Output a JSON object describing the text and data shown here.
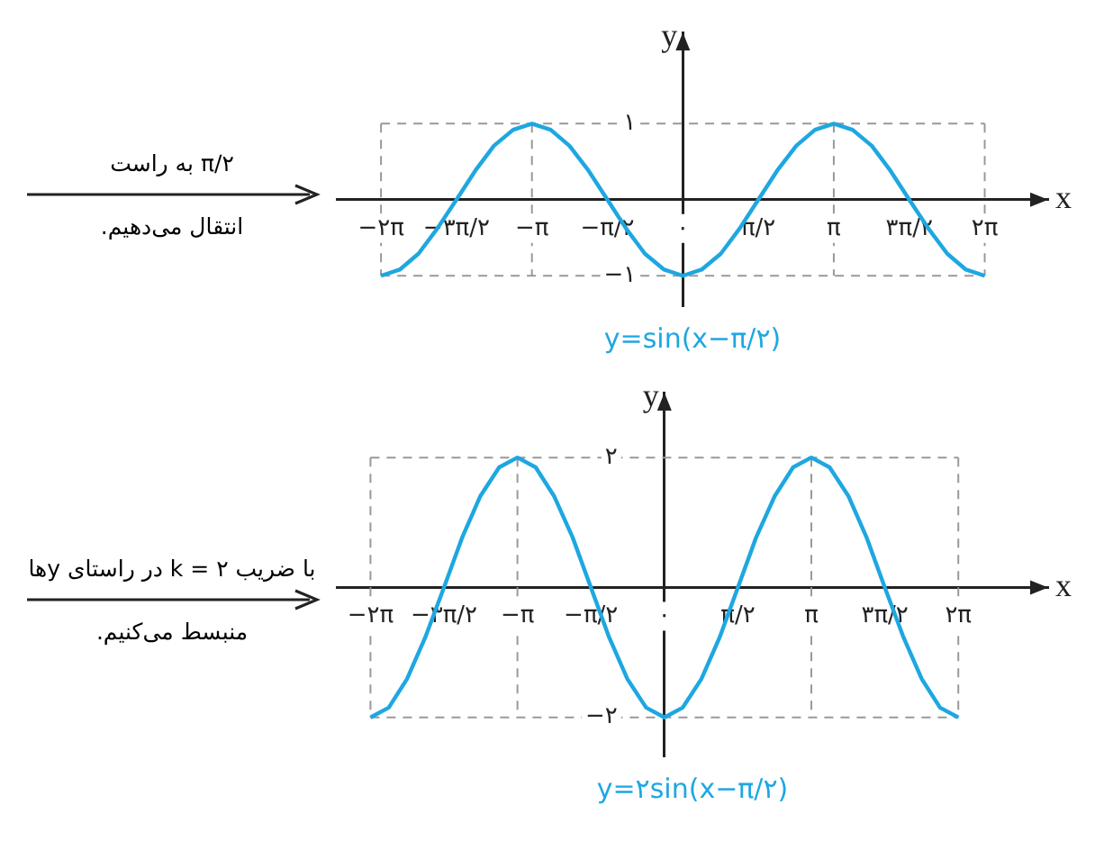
{
  "chart_data": [
    {
      "type": "line",
      "title": "y=sin(x−π/۲)",
      "xlabel": "x",
      "ylabel": "y",
      "annotations": [
        "π/۲ به راست",
        "انتقال می‌دهیم."
      ],
      "x": [
        -6.28,
        -5.89,
        -5.5,
        -5.11,
        -4.71,
        -4.32,
        -3.93,
        -3.53,
        -3.14,
        -2.75,
        -2.36,
        -1.96,
        -1.57,
        -1.18,
        -0.79,
        -0.39,
        0,
        0.39,
        0.79,
        1.18,
        1.57,
        1.96,
        2.36,
        2.75,
        3.14,
        3.53,
        3.93,
        4.32,
        4.71,
        5.11,
        5.5,
        5.89,
        6.28
      ],
      "series": [
        {
          "color": "#1ea7e1",
          "values": [
            -1,
            -0.92,
            -0.71,
            -0.38,
            0,
            0.38,
            0.71,
            0.92,
            1,
            0.92,
            0.71,
            0.38,
            0,
            -0.38,
            -0.71,
            -0.92,
            -1,
            -0.92,
            -0.71,
            -0.38,
            0,
            0.38,
            0.71,
            0.92,
            1,
            0.92,
            0.71,
            0.38,
            0,
            -0.38,
            -0.71,
            -0.92,
            -1
          ]
        }
      ],
      "xlim": [
        -7.2,
        7.6
      ],
      "ylim": [
        -1.4,
        2.2
      ],
      "xticks": [
        {
          "value": -6.28,
          "label": "−۲π"
        },
        {
          "value": -4.71,
          "label": "−۳π/۲"
        },
        {
          "value": -3.14,
          "label": "−π"
        },
        {
          "value": -1.57,
          "label": "−π/۲"
        },
        {
          "value": 0,
          "label": "۰"
        },
        {
          "value": 1.57,
          "label": "π/۲"
        },
        {
          "value": 3.14,
          "label": "π"
        },
        {
          "value": 4.71,
          "label": "۳π/۲"
        },
        {
          "value": 6.28,
          "label": "۲π"
        }
      ],
      "yticks": [
        {
          "value": -1,
          "label": "−۱"
        },
        {
          "value": 1,
          "label": "۱"
        }
      ],
      "ref_lines": [
        {
          "axis": "y",
          "value": 1,
          "color": "#999999",
          "line_style": "dashed"
        },
        {
          "axis": "y",
          "value": -1,
          "color": "#999999",
          "line_style": "dashed"
        },
        {
          "axis": "x",
          "value": -6.28,
          "color": "#999999",
          "line_style": "dashed"
        },
        {
          "axis": "x",
          "value": -3.14,
          "color": "#999999",
          "line_style": "dashed"
        },
        {
          "axis": "x",
          "value": 3.14,
          "color": "#999999",
          "line_style": "dashed"
        },
        {
          "axis": "x",
          "value": 6.28,
          "color": "#999999",
          "line_style": "dashed"
        }
      ],
      "grid": false,
      "legend": false,
      "marker": "none",
      "line_style": "solid"
    },
    {
      "type": "line",
      "title": "y=۲sin(x−π/۲)",
      "xlabel": "x",
      "ylabel": "y",
      "annotations": [
        "با ضریب k = ۲ در راستای yها",
        "منبسط می‌کنیم."
      ],
      "x": [
        -6.28,
        -5.89,
        -5.5,
        -5.11,
        -4.71,
        -4.32,
        -3.93,
        -3.53,
        -3.14,
        -2.75,
        -2.36,
        -1.96,
        -1.57,
        -1.18,
        -0.79,
        -0.39,
        0,
        0.39,
        0.79,
        1.18,
        1.57,
        1.96,
        2.36,
        2.75,
        3.14,
        3.53,
        3.93,
        4.32,
        4.71,
        5.11,
        5.5,
        5.89,
        6.28
      ],
      "series": [
        {
          "color": "#1ea7e1",
          "values": [
            -2,
            -1.85,
            -1.41,
            -0.77,
            0,
            0.77,
            1.41,
            1.85,
            2,
            1.85,
            1.41,
            0.77,
            0,
            -0.77,
            -1.41,
            -1.85,
            -2,
            -1.85,
            -1.41,
            -0.77,
            0,
            0.77,
            1.41,
            1.85,
            2,
            1.85,
            1.41,
            0.77,
            0,
            -0.77,
            -1.41,
            -1.85,
            -2
          ]
        }
      ],
      "xlim": [
        -7.0,
        8.2
      ],
      "ylim": [
        -2.6,
        3.0
      ],
      "xticks": [
        {
          "value": -6.28,
          "label": "−۲π"
        },
        {
          "value": -4.71,
          "label": "−۳π/۲"
        },
        {
          "value": -3.14,
          "label": "−π"
        },
        {
          "value": -1.57,
          "label": "−π/۲"
        },
        {
          "value": 0,
          "label": "۰"
        },
        {
          "value": 1.57,
          "label": "π/۲"
        },
        {
          "value": 3.14,
          "label": "π"
        },
        {
          "value": 4.71,
          "label": "۳π/۲"
        },
        {
          "value": 6.28,
          "label": "۲π"
        }
      ],
      "yticks": [
        {
          "value": -2,
          "label": "−۲"
        },
        {
          "value": 2,
          "label": "۲"
        }
      ],
      "ref_lines": [
        {
          "axis": "y",
          "value": 2,
          "color": "#999999",
          "line_style": "dashed"
        },
        {
          "axis": "y",
          "value": -2,
          "color": "#999999",
          "line_style": "dashed"
        },
        {
          "axis": "x",
          "value": -6.28,
          "color": "#999999",
          "line_style": "dashed"
        },
        {
          "axis": "x",
          "value": -3.14,
          "color": "#999999",
          "line_style": "dashed"
        },
        {
          "axis": "x",
          "value": 3.14,
          "color": "#999999",
          "line_style": "dashed"
        },
        {
          "axis": "x",
          "value": 6.28,
          "color": "#999999",
          "line_style": "dashed"
        }
      ],
      "grid": false,
      "legend": false,
      "marker": "none",
      "line_style": "solid"
    }
  ]
}
